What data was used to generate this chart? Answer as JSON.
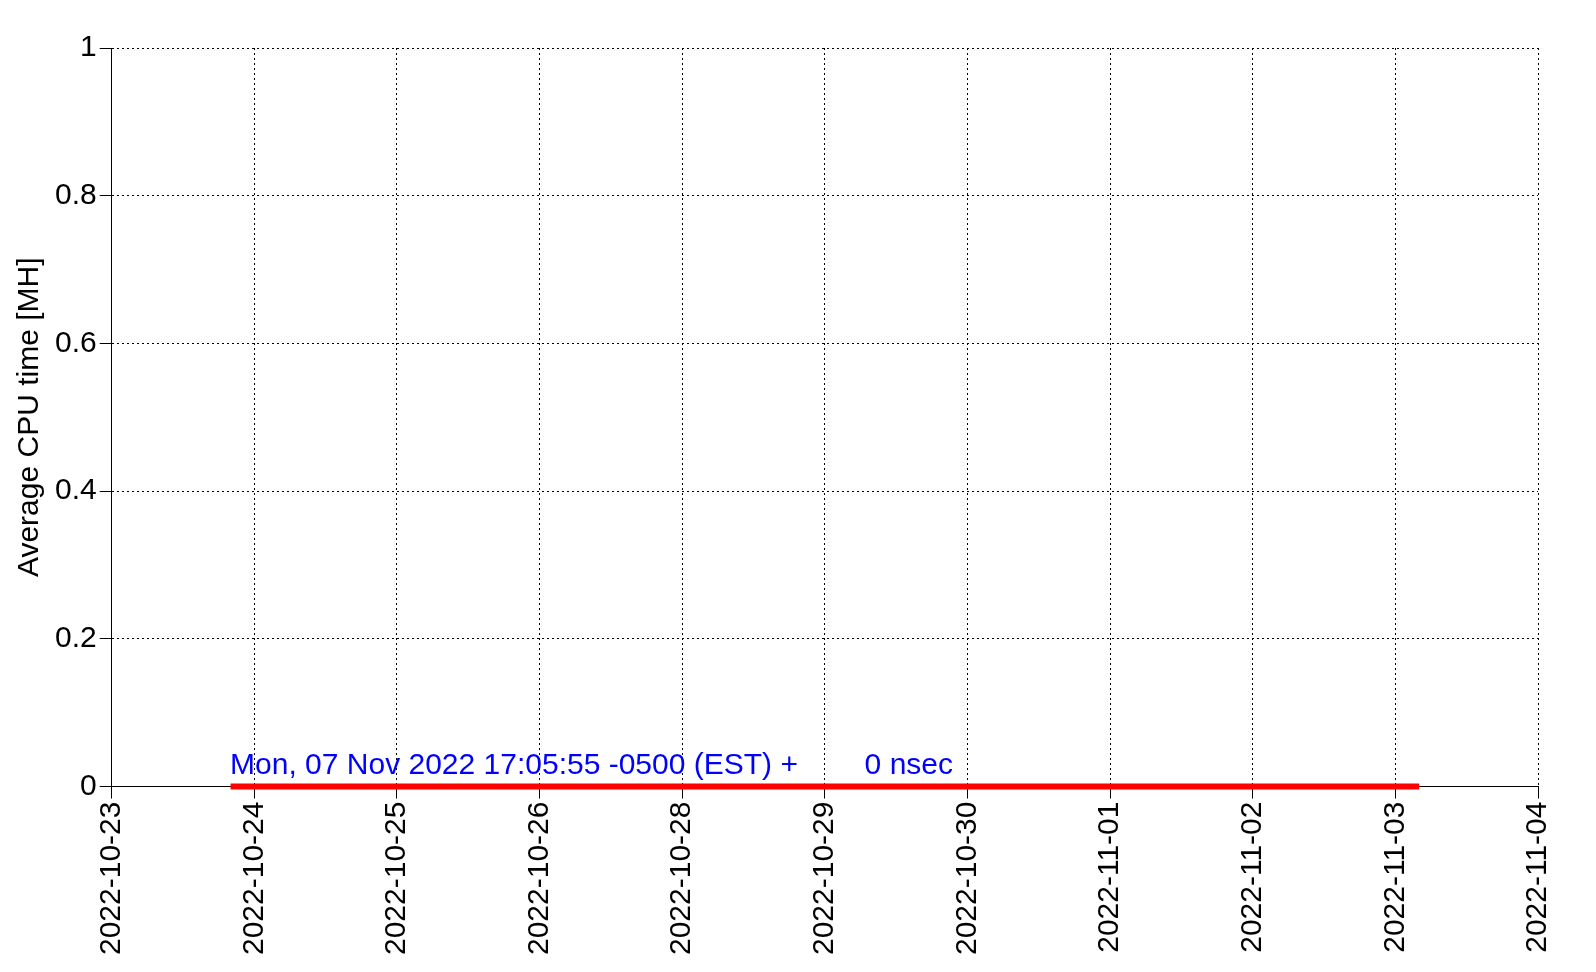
{
  "chart_data": {
    "type": "line",
    "ylabel": "Average CPU time [MH]",
    "x": [
      "2022-10-24",
      "2022-10-25",
      "2022-10-26",
      "2022-10-27",
      "2022-10-28",
      "2022-10-29",
      "2022-10-30",
      "2022-10-31",
      "2022-11-01",
      "2022-11-02",
      "2022-11-03"
    ],
    "series": [
      {
        "color": "#ff0000",
        "values": [
          0,
          0,
          0,
          0,
          0,
          0,
          0,
          0,
          0,
          0,
          0
        ]
      }
    ],
    "xlim": [
      "2022-10-23T00:00",
      "2022-11-04T00:00"
    ],
    "xticks": [
      {
        "value": "2022-10-23T00:00",
        "label": "2022-10-23"
      },
      {
        "value": "2022-10-24T04:48",
        "label": "2022-10-24"
      },
      {
        "value": "2022-10-25T09:36",
        "label": "2022-10-25"
      },
      {
        "value": "2022-10-26T14:24",
        "label": "2022-10-26"
      },
      {
        "value": "2022-10-27T19:12",
        "label": "2022-10-28"
      },
      {
        "value": "2022-10-29T00:00",
        "label": "2022-10-29"
      },
      {
        "value": "2022-10-30T04:48",
        "label": "2022-10-30"
      },
      {
        "value": "2022-10-31T09:36",
        "label": "2022-11-01"
      },
      {
        "value": "2022-11-01T14:24",
        "label": "2022-11-02"
      },
      {
        "value": "2022-11-02T19:12",
        "label": "2022-11-03"
      },
      {
        "value": "2022-11-04T00:00",
        "label": "2022-11-04"
      }
    ],
    "ylim": [
      0,
      1
    ],
    "yticks": [
      0,
      0.2,
      0.4,
      0.6,
      0.8,
      1
    ],
    "grid": true,
    "legend": false,
    "marker": "none",
    "line_style": "solid",
    "annotations": [
      "Mon, 07 Nov 2022 17:05:55 -0500 (EST) +        0 nsec"
    ]
  }
}
